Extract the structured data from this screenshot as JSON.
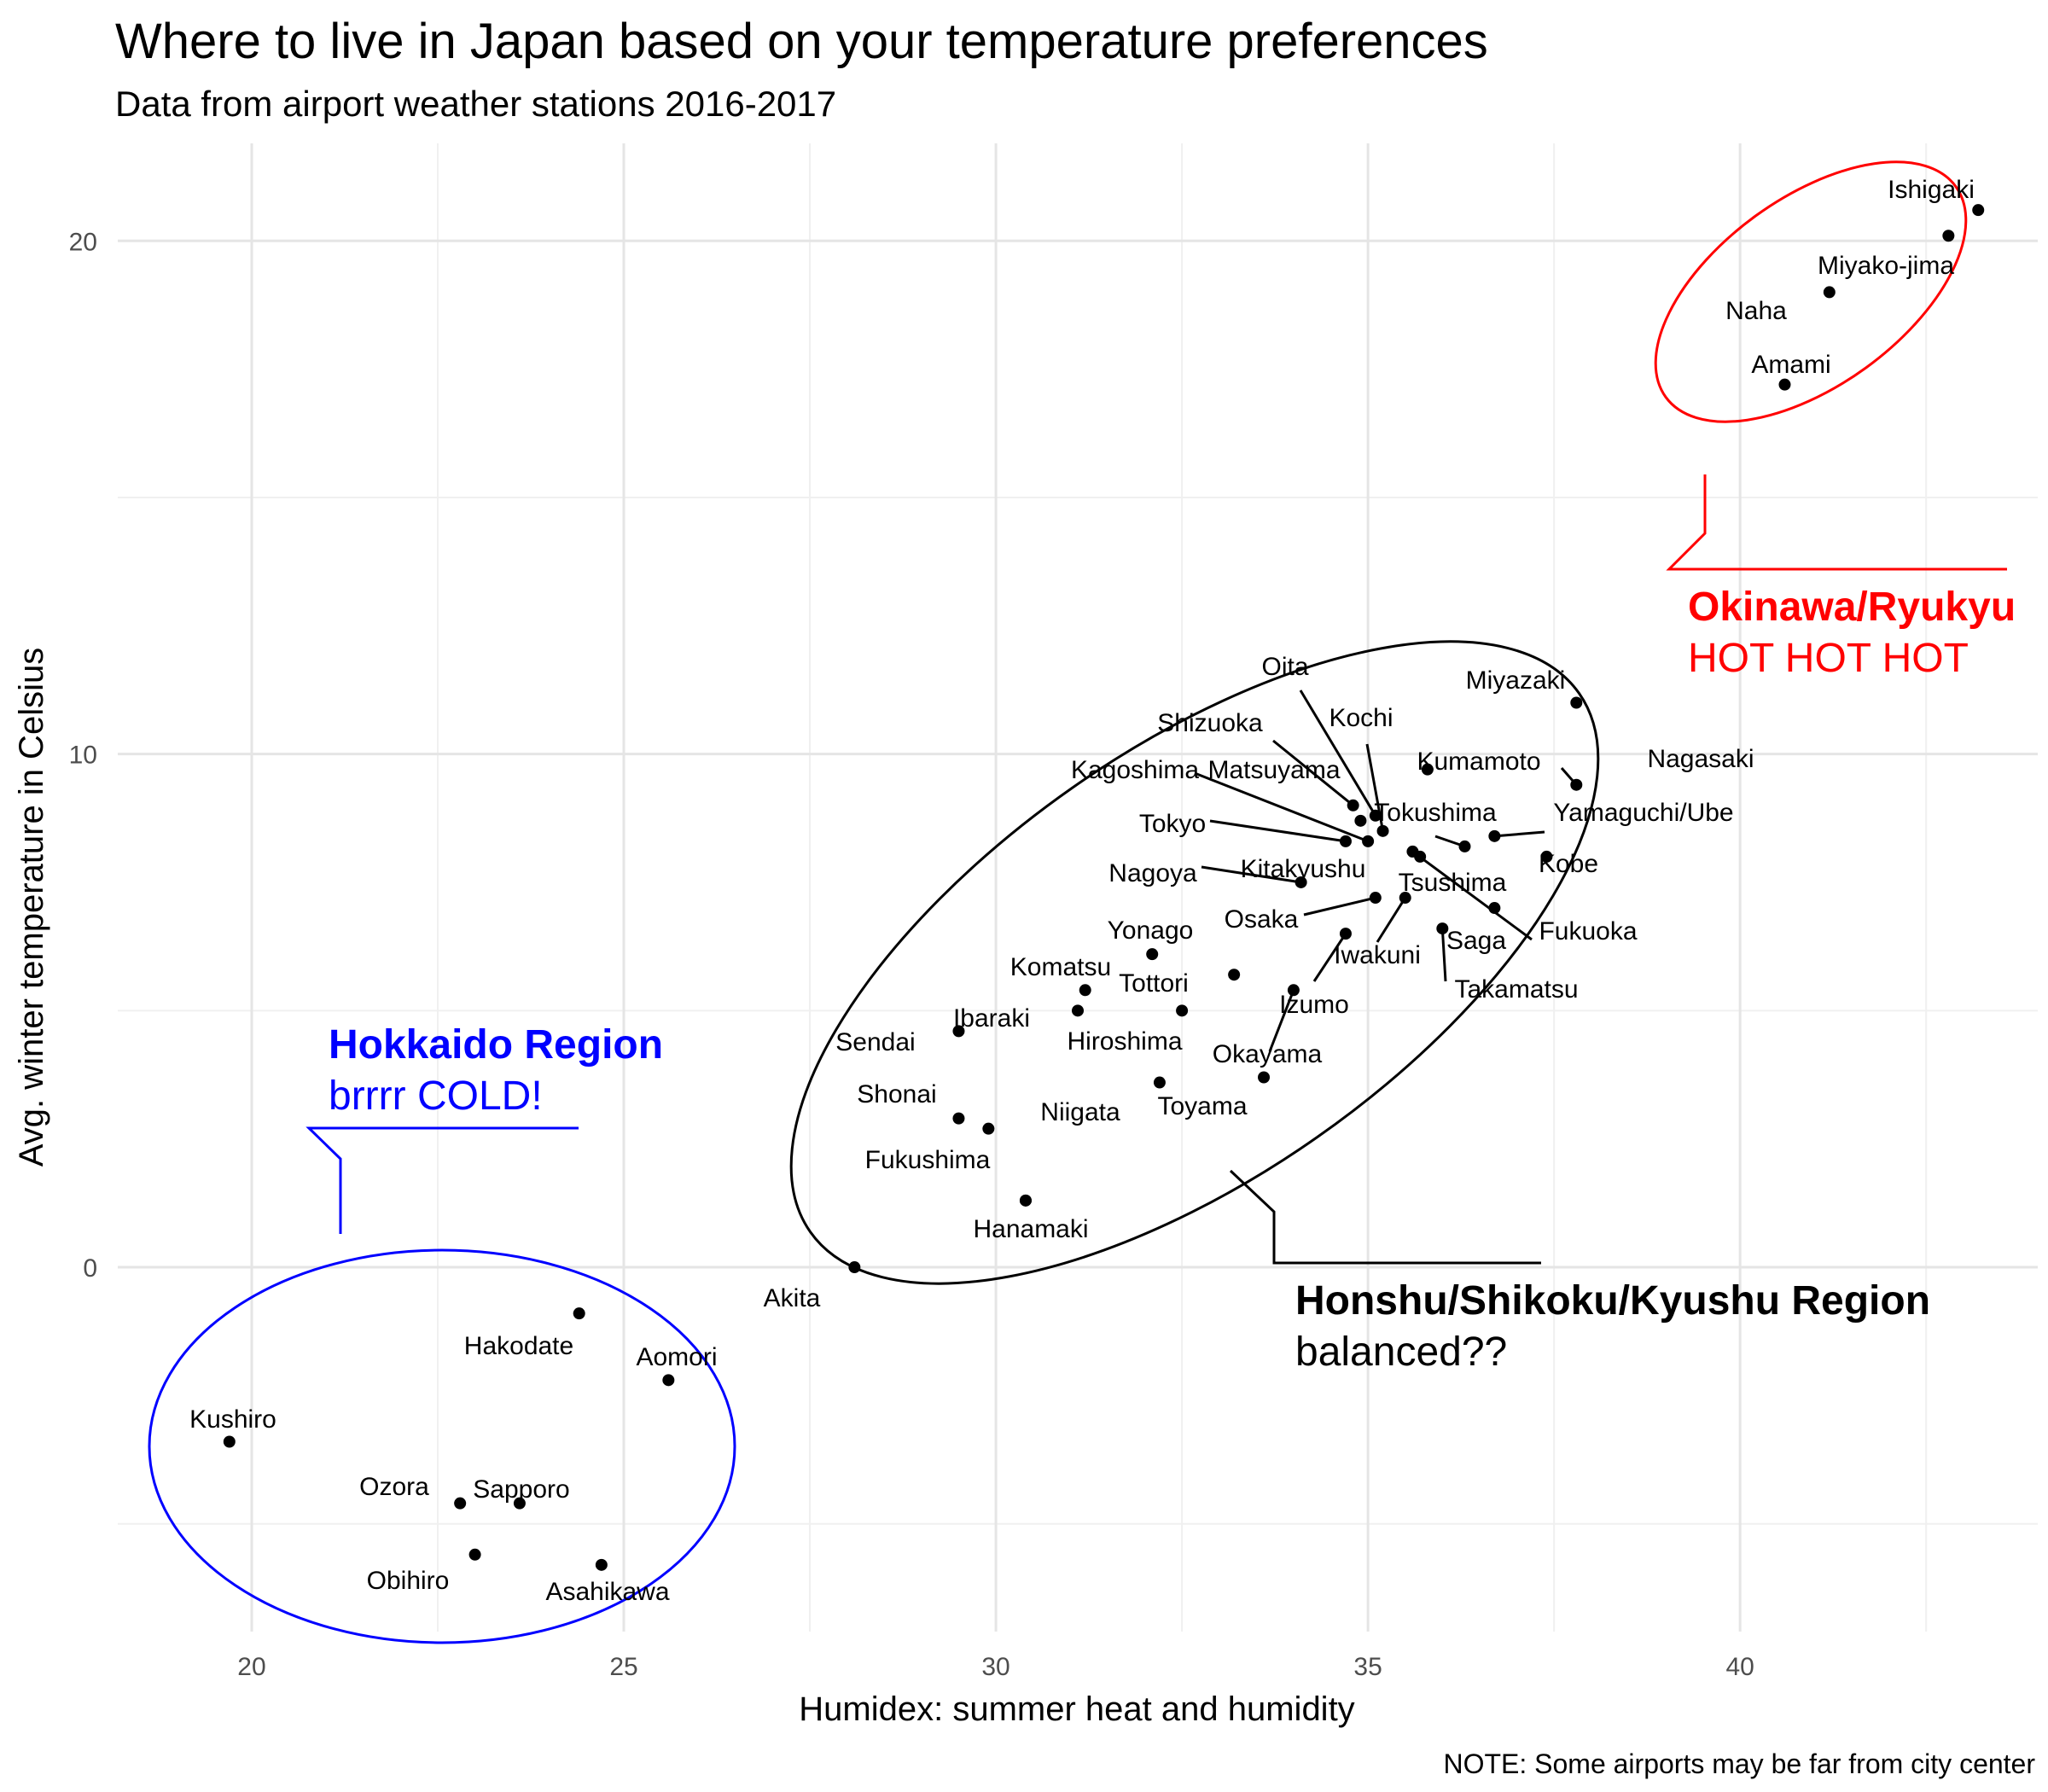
{
  "chart_data": {
    "type": "scatter",
    "title": "Where to live in Japan based on your temperature preferences",
    "subtitle": "Data from airport weather stations 2016-2017",
    "xlabel": "Humidex: summer heat and humidity",
    "ylabel": "Avg. winter temperature in Celsius",
    "caption": "NOTE: Some airports may be far from city center",
    "xlim": [
      18.2,
      44.0
    ],
    "ylim": [
      -7.1,
      21.9
    ],
    "x_ticks": [
      20,
      25,
      30,
      35,
      40
    ],
    "y_ticks": [
      0,
      10,
      20
    ],
    "grid": true,
    "points": [
      {
        "name": "Ishigaki",
        "x": 43.2,
        "y": 20.6
      },
      {
        "name": "Miyako-jima",
        "x": 42.8,
        "y": 20.1
      },
      {
        "name": "Naha",
        "x": 41.2,
        "y": 19.0
      },
      {
        "name": "Amami",
        "x": 40.6,
        "y": 17.2
      },
      {
        "name": "Miyazaki",
        "x": 37.8,
        "y": 11.0
      },
      {
        "name": "Nagasaki",
        "x": 37.8,
        "y": 9.4
      },
      {
        "name": "Kumamoto",
        "x": 35.8,
        "y": 9.7
      },
      {
        "name": "Kobe",
        "x": 37.4,
        "y": 8.0
      },
      {
        "name": "Yamaguchi/Ube",
        "x": 36.7,
        "y": 8.4
      },
      {
        "name": "Tokushima",
        "x": 36.3,
        "y": 8.2
      },
      {
        "name": "Fukuoka",
        "x": 35.6,
        "y": 8.1
      },
      {
        "name": "Tsushima",
        "x": 35.7,
        "y": 8.0
      },
      {
        "name": "Saga",
        "x": 36.7,
        "y": 7.0
      },
      {
        "name": "Takamatsu",
        "x": 36.0,
        "y": 6.6
      },
      {
        "name": "Iwakuni",
        "x": 35.5,
        "y": 7.2
      },
      {
        "name": "Osaka",
        "x": 35.1,
        "y": 7.2
      },
      {
        "name": "Izumo",
        "x": 34.7,
        "y": 6.5
      },
      {
        "name": "Oita",
        "x": 35.1,
        "y": 8.8
      },
      {
        "name": "Kochi",
        "x": 35.2,
        "y": 8.5
      },
      {
        "name": "Shizuoka",
        "x": 34.8,
        "y": 9.0
      },
      {
        "name": "Matsuyama",
        "x": 34.9,
        "y": 8.7
      },
      {
        "name": "Kagoshima",
        "x": 35.0,
        "y": 8.3
      },
      {
        "name": "Tokyo",
        "x": 34.7,
        "y": 8.3
      },
      {
        "name": "Nagoya",
        "x": 34.1,
        "y": 7.5
      },
      {
        "name": "Kitakyushu",
        "x": 33.2,
        "y": 5.7
      },
      {
        "name": "Okayama",
        "x": 34.0,
        "y": 5.4
      },
      {
        "name": "Toyama",
        "x": 33.6,
        "y": 3.7
      },
      {
        "name": "Yonago",
        "x": 32.1,
        "y": 6.1
      },
      {
        "name": "Tottori",
        "x": 32.5,
        "y": 5.0
      },
      {
        "name": "Komatsu",
        "x": 31.2,
        "y": 5.4
      },
      {
        "name": "Hiroshima",
        "x": 31.1,
        "y": 5.0
      },
      {
        "name": "Niigata",
        "x": 32.2,
        "y": 3.6
      },
      {
        "name": "Ibaraki",
        "x": 29.5,
        "y": 4.6
      },
      {
        "name": "Sendai",
        "x": 29.5,
        "y": 2.9
      },
      {
        "name": "Shonai",
        "x": 29.9,
        "y": 2.7
      },
      {
        "name": "Fukushima",
        "x": 30.4,
        "y": 1.3
      },
      {
        "name": "Hanamaki",
        "x": 30.4,
        "y": 1.3
      },
      {
        "name": "Akita",
        "x": 28.1,
        "y": 0.0
      },
      {
        "name": "Hakodate",
        "x": 24.4,
        "y": -0.9
      },
      {
        "name": "Aomori",
        "x": 25.6,
        "y": -2.2
      },
      {
        "name": "Kushiro",
        "x": 19.7,
        "y": -3.4
      },
      {
        "name": "Ozora",
        "x": 22.8,
        "y": -4.6
      },
      {
        "name": "Sapporo",
        "x": 23.6,
        "y": -4.6
      },
      {
        "name": "Obihiro",
        "x": 23.0,
        "y": -5.6
      },
      {
        "name": "Asahikawa",
        "x": 24.7,
        "y": -5.8
      }
    ],
    "annotations": [
      {
        "title": "Okinawa/Ryukyu",
        "text": "HOT HOT HOT",
        "color": "#ff0000"
      },
      {
        "title": "Honshu/Shikoku/Kyushu Region",
        "text": "balanced??",
        "color": "#000000"
      },
      {
        "title": "Hokkaido Region",
        "text": "brrrr COLD!",
        "color": "#0000ff"
      }
    ]
  }
}
